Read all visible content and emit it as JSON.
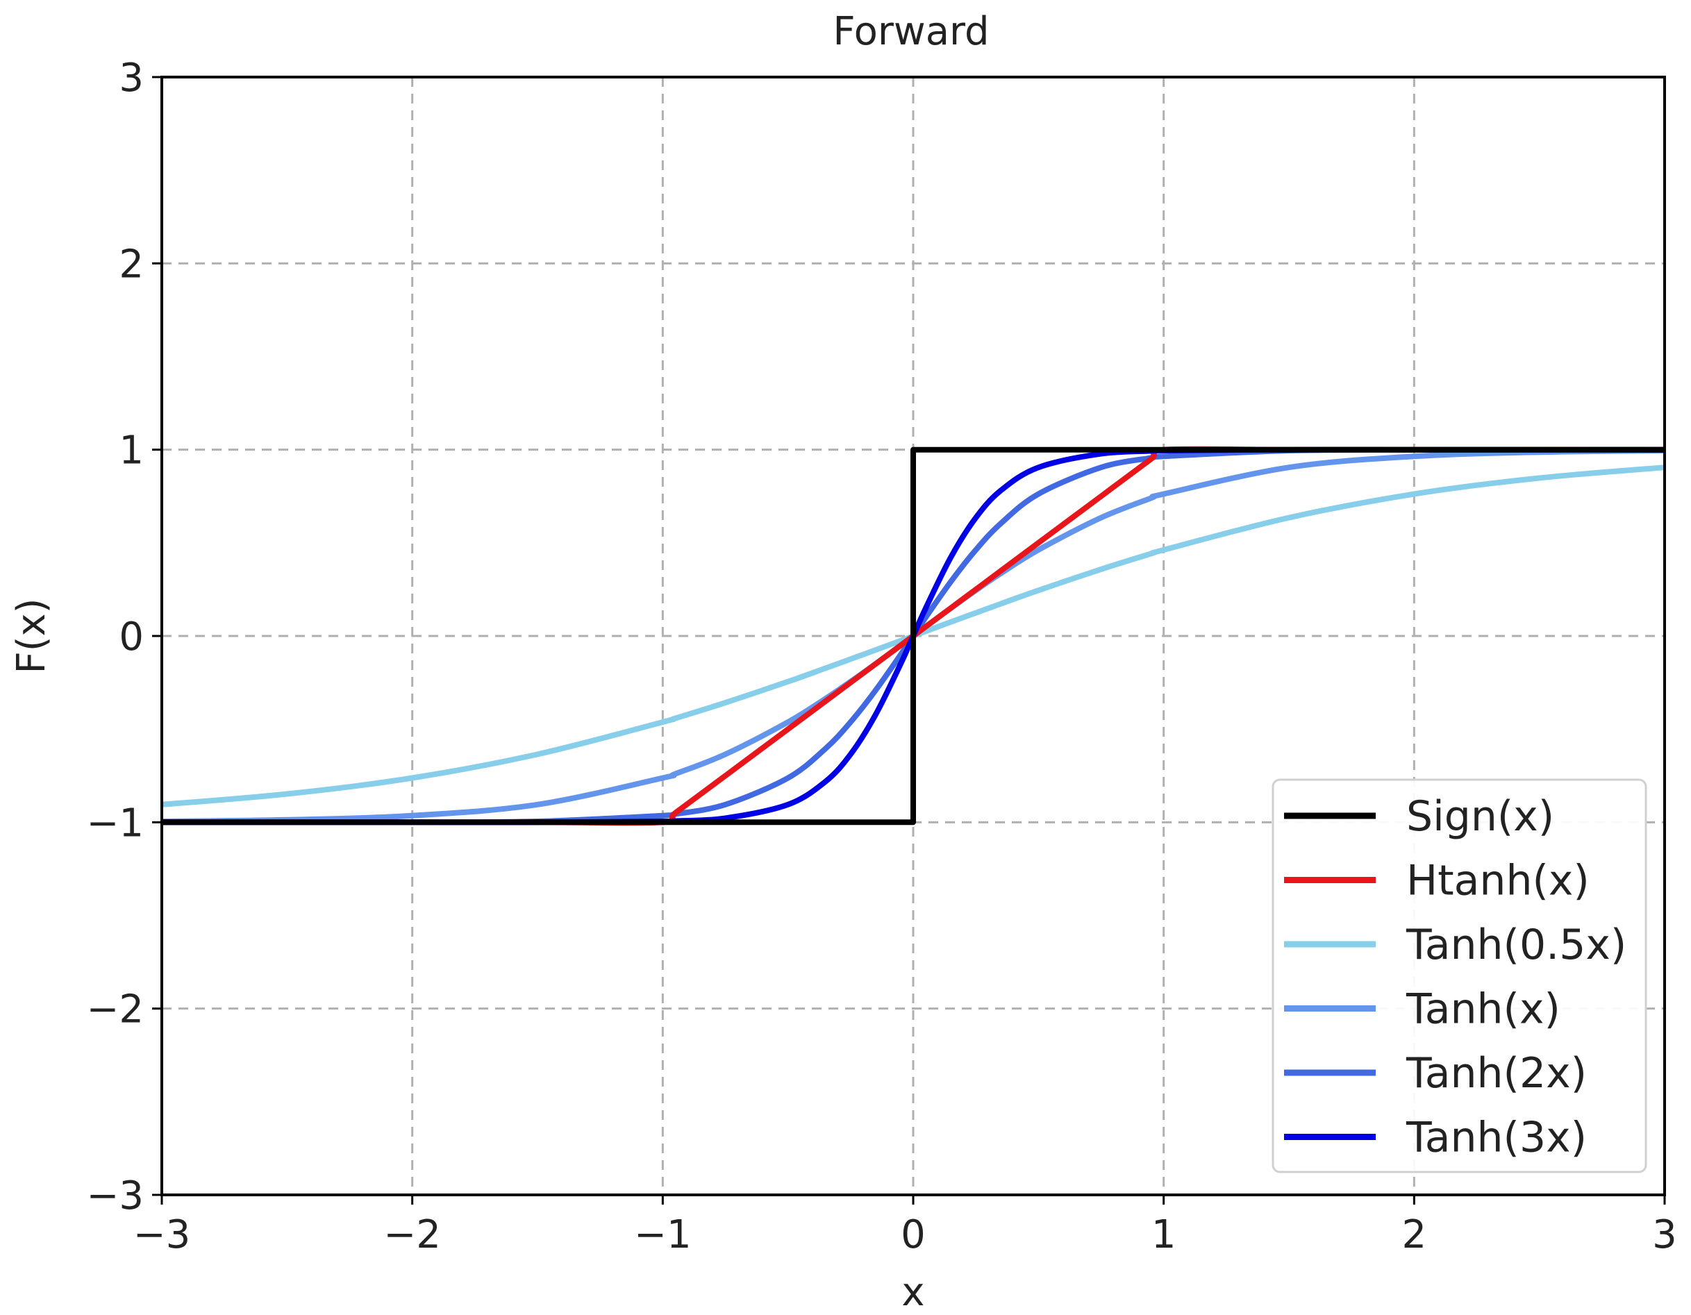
{
  "chart_data": {
    "type": "line",
    "title": "Forward",
    "xlabel": "x",
    "ylabel": "F(x)",
    "xlim": [
      -3,
      3
    ],
    "ylim": [
      -3,
      3
    ],
    "xticks": [
      -3,
      -2,
      -1,
      0,
      1,
      2,
      3
    ],
    "yticks": [
      -3,
      -2,
      -1,
      0,
      1,
      2,
      3
    ],
    "xtick_labels": [
      "−3",
      "−2",
      "−1",
      "0",
      "1",
      "2",
      "3"
    ],
    "ytick_labels": [
      "−3",
      "−2",
      "−1",
      "0",
      "1",
      "2",
      "3"
    ],
    "grid": true,
    "legend_position": "lower-right",
    "x": [
      -3,
      -2.5,
      -2,
      -1.5,
      -1,
      -0.95,
      -0.75,
      -0.5,
      -0.35,
      -0.25,
      -0.15,
      -0.05,
      0,
      0.05,
      0.15,
      0.25,
      0.35,
      0.5,
      0.75,
      0.95,
      1,
      1.5,
      2,
      2.5,
      3
    ],
    "series": [
      {
        "name": "Sign(x)",
        "color": "#000000",
        "points": [
          [
            -3,
            -1
          ],
          [
            0,
            -1
          ],
          [
            0,
            1
          ],
          [
            3,
            1
          ]
        ]
      },
      {
        "name": "Htanh(x)",
        "color": "#e8161b",
        "values": [
          -1,
          -1,
          -1,
          -1,
          -1,
          -0.95,
          -0.75,
          -0.5,
          -0.35,
          -0.25,
          -0.15,
          -0.05,
          0,
          0.05,
          0.15,
          0.25,
          0.35,
          0.5,
          0.75,
          0.95,
          1,
          1,
          1,
          1,
          1
        ]
      },
      {
        "name": "Tanh(0.5x)",
        "color": "#87ceeb",
        "values": [
          -0.905,
          -0.848,
          -0.762,
          -0.635,
          -0.462,
          -0.442,
          -0.358,
          -0.245,
          -0.173,
          -0.124,
          -0.075,
          -0.025,
          0,
          0.025,
          0.075,
          0.124,
          0.173,
          0.245,
          0.358,
          0.442,
          0.462,
          0.635,
          0.762,
          0.848,
          0.905
        ]
      },
      {
        "name": "Tanh(x)",
        "color": "#6495ed",
        "values": [
          -0.995,
          -0.987,
          -0.964,
          -0.905,
          -0.762,
          -0.74,
          -0.635,
          -0.462,
          -0.336,
          -0.245,
          -0.149,
          -0.05,
          0,
          0.05,
          0.149,
          0.245,
          0.336,
          0.462,
          0.635,
          0.74,
          0.762,
          0.905,
          0.964,
          0.987,
          0.995
        ]
      },
      {
        "name": "Tanh(2x)",
        "color": "#4169e1",
        "values": [
          -1,
          -1,
          -0.999,
          -0.995,
          -0.964,
          -0.956,
          -0.905,
          -0.762,
          -0.604,
          -0.462,
          -0.291,
          -0.1,
          0,
          0.1,
          0.291,
          0.462,
          0.604,
          0.762,
          0.905,
          0.956,
          0.964,
          0.995,
          0.999,
          1,
          1
        ]
      },
      {
        "name": "Tanh(3x)",
        "color": "#0000e6",
        "values": [
          -1,
          -1,
          -1,
          -1,
          -0.995,
          -0.993,
          -0.978,
          -0.905,
          -0.781,
          -0.635,
          -0.422,
          -0.149,
          0,
          0.149,
          0.422,
          0.635,
          0.781,
          0.905,
          0.978,
          0.993,
          0.995,
          1,
          1,
          1,
          1
        ]
      }
    ]
  }
}
